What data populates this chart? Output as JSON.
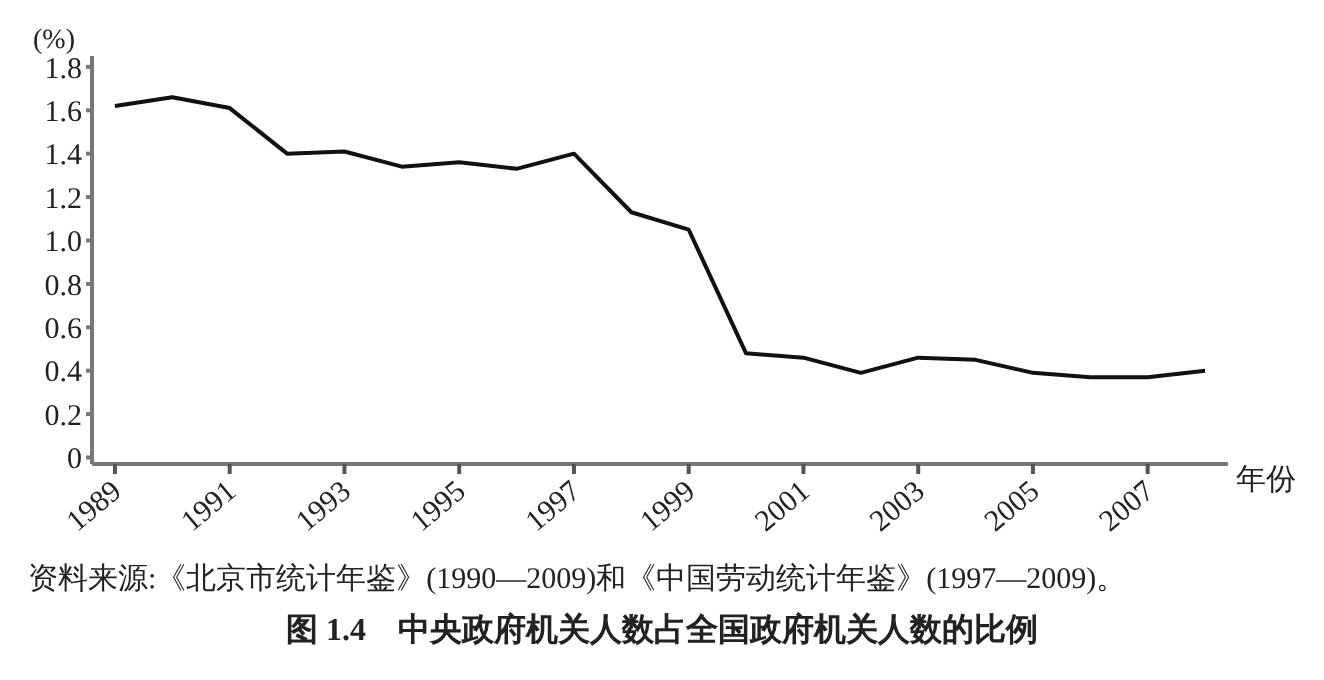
{
  "chart_data": {
    "type": "line",
    "title": "图 1.4　中央政府机关人数占全国政府机关人数的比例",
    "xlabel": "年份",
    "ylabel": "(%)",
    "x": [
      1989,
      1990,
      1991,
      1992,
      1993,
      1994,
      1995,
      1996,
      1997,
      1998,
      1999,
      2000,
      2001,
      2002,
      2003,
      2004,
      2005,
      2006,
      2007,
      2008
    ],
    "series": [
      {
        "color": "#111111",
        "values": [
          1.62,
          1.66,
          1.61,
          1.4,
          1.41,
          1.34,
          1.36,
          1.33,
          1.4,
          1.13,
          1.05,
          0.48,
          0.46,
          0.39,
          0.46,
          0.45,
          0.39,
          0.37,
          0.37,
          0.4
        ]
      }
    ],
    "xlim": [
      1988.6,
      2008.4
    ],
    "xticks": [
      1989,
      1991,
      1993,
      1995,
      1997,
      1999,
      2001,
      2003,
      2005,
      2007
    ],
    "ylim": [
      -0.03,
      1.85
    ],
    "yticks": [
      0,
      0.2,
      0.4,
      0.6,
      0.8,
      {
        "value": 1,
        "label": "1.0"
      },
      1.2,
      1.4,
      1.6,
      1.8
    ],
    "grid": false,
    "legend": false,
    "marker": "none",
    "line_style": "solid",
    "annotations": [
      "资料来源:《北京市统计年鉴》(1990—2009)和《中国劳动统计年鉴》(1997—2009)。"
    ]
  }
}
